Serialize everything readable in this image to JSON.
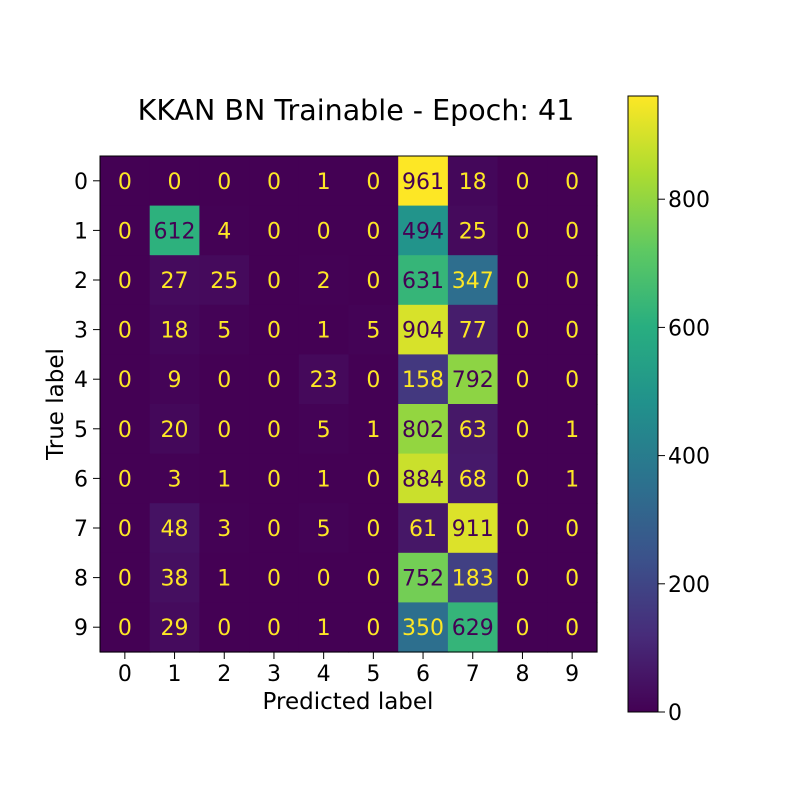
{
  "chart_data": {
    "type": "heatmap",
    "title": "KKAN BN Trainable - Epoch: 41",
    "xlabel": "Predicted label",
    "ylabel": "True label",
    "x_ticks": [
      "0",
      "1",
      "2",
      "3",
      "4",
      "5",
      "6",
      "7",
      "8",
      "9"
    ],
    "y_ticks": [
      "0",
      "1",
      "2",
      "3",
      "4",
      "5",
      "6",
      "7",
      "8",
      "9"
    ],
    "matrix": [
      [
        0,
        0,
        0,
        0,
        1,
        0,
        961,
        18,
        0,
        0
      ],
      [
        0,
        612,
        4,
        0,
        0,
        0,
        494,
        25,
        0,
        0
      ],
      [
        0,
        27,
        25,
        0,
        2,
        0,
        631,
        347,
        0,
        0
      ],
      [
        0,
        18,
        5,
        0,
        1,
        5,
        904,
        77,
        0,
        0
      ],
      [
        0,
        9,
        0,
        0,
        23,
        0,
        158,
        792,
        0,
        0
      ],
      [
        0,
        20,
        0,
        0,
        5,
        1,
        802,
        63,
        0,
        1
      ],
      [
        0,
        3,
        1,
        0,
        1,
        0,
        884,
        68,
        0,
        1
      ],
      [
        0,
        48,
        3,
        0,
        5,
        0,
        61,
        911,
        0,
        0
      ],
      [
        0,
        38,
        1,
        0,
        0,
        0,
        752,
        183,
        0,
        0
      ],
      [
        0,
        29,
        0,
        0,
        1,
        0,
        350,
        629,
        0,
        0
      ]
    ],
    "colormap": "viridis",
    "vmin": 0,
    "vmax": 961,
    "colorbar_ticks": [
      0,
      200,
      400,
      600,
      800
    ],
    "colorbar_tick_labels": [
      "0",
      "200",
      "400",
      "600",
      "800"
    ]
  },
  "colors": {
    "low_text": "#fde725",
    "high_text": "#440154",
    "axis": "#000000",
    "background": "#ffffff"
  }
}
